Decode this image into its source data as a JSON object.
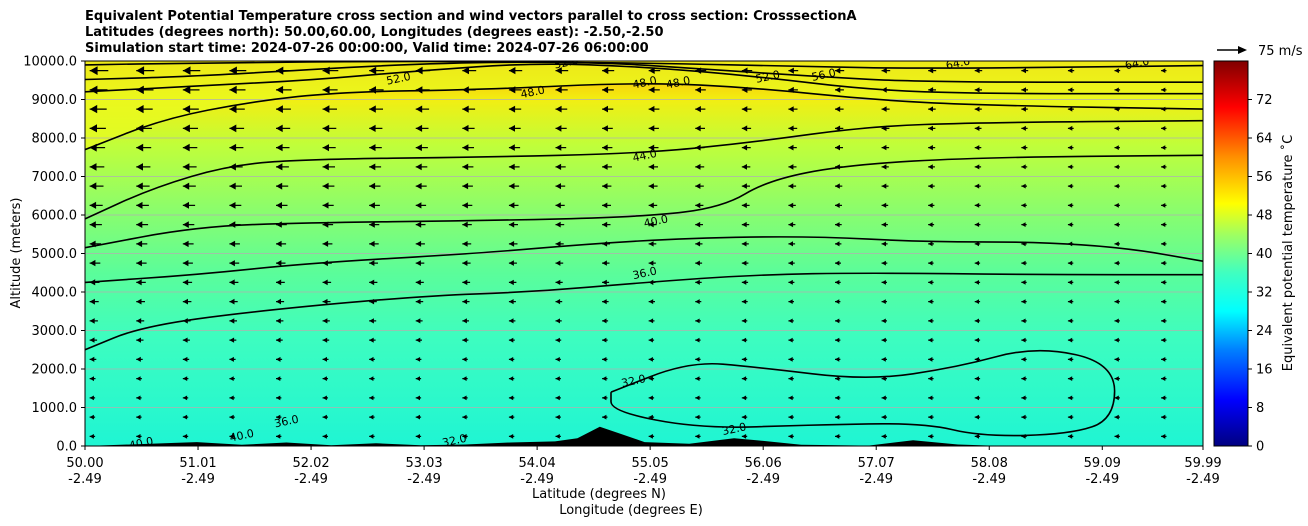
{
  "title_lines": [
    "Equivalent Potential Temperature cross section and wind vectors parallel to cross section: CrosssectionA",
    "Latitudes (degrees north): 50.00,60.00, Longitudes (degrees east): -2.50,-2.50",
    "Simulation start time: 2024-07-26 00:00:00, Valid time: 2024-07-26 06:00:00"
  ],
  "chart_data": {
    "type": "heatmap",
    "variable": "Equivalent potential temperature",
    "xlabel": "Latitude (degrees N)",
    "xlabel2": "Longitude (degrees E)",
    "ylabel": "Altitude (meters)",
    "x_ticks": [
      {
        "lat": "50.00",
        "lon": "-2.49"
      },
      {
        "lat": "51.01",
        "lon": "-2.49"
      },
      {
        "lat": "52.02",
        "lon": "-2.49"
      },
      {
        "lat": "53.03",
        "lon": "-2.49"
      },
      {
        "lat": "54.04",
        "lon": "-2.49"
      },
      {
        "lat": "55.05",
        "lon": "-2.49"
      },
      {
        "lat": "56.06",
        "lon": "-2.49"
      },
      {
        "lat": "57.07",
        "lon": "-2.49"
      },
      {
        "lat": "58.08",
        "lon": "-2.49"
      },
      {
        "lat": "59.09",
        "lon": "-2.49"
      },
      {
        "lat": "59.99",
        "lon": "-2.49"
      }
    ],
    "xlim": [
      50.0,
      59.99
    ],
    "ylim": [
      0,
      10000
    ],
    "y_ticks": [
      "0.0",
      "1000.0",
      "2000.0",
      "3000.0",
      "4000.0",
      "5000.0",
      "6000.0",
      "7000.0",
      "8000.0",
      "9000.0",
      "10000.0"
    ],
    "y_tick_values": [
      0,
      1000,
      2000,
      3000,
      4000,
      5000,
      6000,
      7000,
      8000,
      9000,
      10000
    ],
    "grid": "horizontal",
    "colorbar": {
      "label": "Equivalent potential temperature ˚C",
      "ticks": [
        "0",
        "8",
        "16",
        "24",
        "32",
        "40",
        "48",
        "56",
        "64",
        "72"
      ],
      "tick_values": [
        0,
        8,
        16,
        24,
        32,
        40,
        48,
        56,
        64,
        72
      ],
      "range": [
        0,
        80
      ]
    },
    "quiver_key": "75 m/s",
    "contour_levels": [
      32.0,
      36.0,
      40.0,
      44.0,
      48.0,
      52.0,
      56.0,
      64.0
    ],
    "contour_labels": [
      {
        "text": "52.0",
        "lat": 52.8,
        "alt": 9550
      },
      {
        "text": "52.0",
        "lat": 56.1,
        "alt": 9600
      },
      {
        "text": "56.0",
        "lat": 56.6,
        "alt": 9650
      },
      {
        "text": "64.0",
        "lat": 57.8,
        "alt": 9950
      },
      {
        "text": "64.0",
        "lat": 59.4,
        "alt": 9950
      },
      {
        "text": "52.0",
        "lat": 54.3,
        "alt": 9970
      },
      {
        "text": "48.0",
        "lat": 54.0,
        "alt": 9200
      },
      {
        "text": "48.0",
        "lat": 55.0,
        "alt": 9450
      },
      {
        "text": "48.0",
        "lat": 55.3,
        "alt": 9450
      },
      {
        "text": "44.0",
        "lat": 55.0,
        "alt": 7550
      },
      {
        "text": "40.0",
        "lat": 55.1,
        "alt": 5850
      },
      {
        "text": "36.0",
        "lat": 55.0,
        "alt": 4500
      },
      {
        "text": "32.0",
        "lat": 54.9,
        "alt": 1700
      },
      {
        "text": "32.0",
        "lat": 55.8,
        "alt": 450
      },
      {
        "text": "40.0",
        "lat": 50.5,
        "alt": 80
      },
      {
        "text": "40.0",
        "lat": 51.4,
        "alt": 280
      },
      {
        "text": "36.0",
        "lat": 51.8,
        "alt": 650
      },
      {
        "text": "32.0",
        "lat": 53.3,
        "alt": 150
      }
    ],
    "isolines": [
      {
        "level": 64,
        "points": [
          [
            50.0,
            9900
          ],
          [
            51.0,
            9950
          ],
          [
            53.0,
            10000
          ],
          [
            55.0,
            9950
          ],
          [
            56.5,
            9850
          ],
          [
            57.5,
            9800
          ],
          [
            59.99,
            9880
          ]
        ]
      },
      {
        "level": 56,
        "points": [
          [
            50.0,
            9520
          ],
          [
            51.0,
            9600
          ],
          [
            53.0,
            9950
          ],
          [
            54.5,
            9980
          ],
          [
            55.5,
            9800
          ],
          [
            56.5,
            9600
          ],
          [
            57.5,
            9450
          ],
          [
            59.99,
            9450
          ]
        ]
      },
      {
        "level": 52,
        "points": [
          [
            50.0,
            9200
          ],
          [
            51.0,
            9350
          ],
          [
            52.0,
            9500
          ],
          [
            53.0,
            9750
          ],
          [
            54.0,
            9950
          ],
          [
            55.0,
            9850
          ],
          [
            56.0,
            9600
          ],
          [
            57.0,
            9250
          ],
          [
            58.0,
            9150
          ],
          [
            59.99,
            9150
          ]
        ]
      },
      {
        "level": 48,
        "points": [
          [
            50.0,
            7700
          ],
          [
            50.7,
            8500
          ],
          [
            51.5,
            8950
          ],
          [
            52.3,
            9200
          ],
          [
            53.5,
            9250
          ],
          [
            55.0,
            9450
          ],
          [
            56.0,
            9300
          ],
          [
            57.0,
            9000
          ],
          [
            58.0,
            8850
          ],
          [
            59.99,
            8750
          ]
        ]
      },
      {
        "level": 44,
        "points": [
          [
            50.0,
            5900
          ],
          [
            50.6,
            6700
          ],
          [
            51.3,
            7300
          ],
          [
            52.0,
            7450
          ],
          [
            53.5,
            7500
          ],
          [
            55.0,
            7600
          ],
          [
            56.0,
            7900
          ],
          [
            57.0,
            8300
          ],
          [
            58.0,
            8400
          ],
          [
            59.99,
            8450
          ]
        ]
      },
      {
        "level": 40,
        "points": [
          [
            50.0,
            5150
          ],
          [
            51.0,
            5700
          ],
          [
            52.0,
            5800
          ],
          [
            53.5,
            5850
          ],
          [
            55.0,
            5950
          ],
          [
            55.7,
            6200
          ],
          [
            56.1,
            6900
          ],
          [
            56.8,
            7300
          ],
          [
            58.0,
            7500
          ],
          [
            59.99,
            7550
          ]
        ]
      },
      {
        "level": 36,
        "points": [
          [
            50.0,
            4250
          ],
          [
            51.0,
            4450
          ],
          [
            52.0,
            4750
          ],
          [
            53.5,
            5000
          ],
          [
            54.5,
            5250
          ],
          [
            55.4,
            5400
          ],
          [
            56.5,
            5450
          ],
          [
            57.5,
            5300
          ],
          [
            58.5,
            5300
          ],
          [
            59.3,
            5150
          ],
          [
            59.99,
            4800
          ]
        ]
      },
      {
        "level": 32,
        "points": [
          [
            50.0,
            2500
          ],
          [
            50.5,
            3100
          ],
          [
            51.5,
            3500
          ],
          [
            53.0,
            3900
          ],
          [
            54.0,
            4000
          ],
          [
            55.0,
            4250
          ],
          [
            56.0,
            4450
          ],
          [
            57.0,
            4500
          ],
          [
            58.5,
            4450
          ],
          [
            59.99,
            4450
          ]
        ]
      },
      {
        "level": 32,
        "points": [
          [
            54.7,
            1400
          ],
          [
            55.4,
            2200
          ],
          [
            56.0,
            2050
          ],
          [
            57.0,
            1700
          ],
          [
            57.8,
            2050
          ],
          [
            58.5,
            2600
          ],
          [
            59.2,
            2150
          ],
          [
            59.2,
            700
          ],
          [
            58.8,
            300
          ],
          [
            58.0,
            250
          ],
          [
            57.5,
            600
          ],
          [
            56.5,
            550
          ],
          [
            55.5,
            450
          ],
          [
            54.7,
            900
          ],
          [
            54.7,
            1400
          ]
        ]
      }
    ],
    "terrain": [
      [
        50.0,
        0
      ],
      [
        50.4,
        40
      ],
      [
        50.8,
        80
      ],
      [
        51.0,
        100
      ],
      [
        51.4,
        30
      ],
      [
        51.8,
        90
      ],
      [
        52.2,
        20
      ],
      [
        52.6,
        70
      ],
      [
        53.0,
        20
      ],
      [
        53.4,
        40
      ],
      [
        53.8,
        90
      ],
      [
        54.2,
        120
      ],
      [
        54.4,
        200
      ],
      [
        54.6,
        500
      ],
      [
        54.8,
        300
      ],
      [
        55.0,
        100
      ],
      [
        55.4,
        60
      ],
      [
        55.8,
        200
      ],
      [
        56.0,
        150
      ],
      [
        56.4,
        30
      ],
      [
        57.0,
        10
      ],
      [
        57.4,
        150
      ],
      [
        57.8,
        40
      ],
      [
        58.2,
        0
      ],
      [
        59.99,
        0
      ]
    ],
    "wind": {
      "columns": 24,
      "rows": 20,
      "direction": "southward"
    }
  }
}
